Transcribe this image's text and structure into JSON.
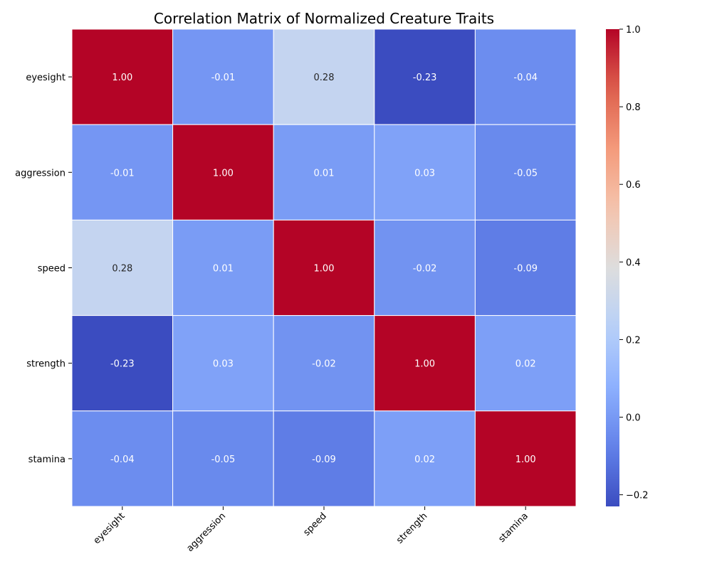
{
  "chart_data": {
    "type": "heatmap",
    "title": "Correlation Matrix of Normalized Creature Traits",
    "xlabel": "",
    "ylabel": "",
    "x_labels": [
      "eyesight",
      "aggression",
      "speed",
      "strength",
      "stamina"
    ],
    "y_labels": [
      "eyesight",
      "aggression",
      "speed",
      "strength",
      "stamina"
    ],
    "matrix": [
      [
        1.0,
        -0.01,
        0.28,
        -0.23,
        -0.04
      ],
      [
        -0.01,
        1.0,
        0.01,
        0.03,
        -0.05
      ],
      [
        0.28,
        0.01,
        1.0,
        -0.02,
        -0.09
      ],
      [
        -0.23,
        0.03,
        -0.02,
        1.0,
        0.02
      ],
      [
        -0.04,
        -0.05,
        -0.09,
        0.02,
        1.0
      ]
    ],
    "cell_labels": [
      [
        "1.00",
        "-0.01",
        "0.28",
        "-0.23",
        "-0.04"
      ],
      [
        "-0.01",
        "1.00",
        "0.01",
        "0.03",
        "-0.05"
      ],
      [
        "0.28",
        "0.01",
        "1.00",
        "-0.02",
        "-0.09"
      ],
      [
        "-0.23",
        "0.03",
        "-0.02",
        "1.00",
        "0.02"
      ],
      [
        "-0.04",
        "-0.05",
        "-0.09",
        "0.02",
        "1.00"
      ]
    ],
    "colormap": "coolwarm",
    "color_range": [
      -0.23,
      1.0
    ],
    "colorbar_ticks": [
      -0.2,
      0.0,
      0.2,
      0.4,
      0.6,
      0.8,
      1.0
    ],
    "colorbar_tick_labels": [
      "−0.2",
      "0.0",
      "0.2",
      "0.4",
      "0.6",
      "0.8",
      "1.0"
    ],
    "cell_border_color": "#ffffff",
    "colors": {
      "low": "#3b4cc0",
      "mid": "#dddddd",
      "high": "#b40426"
    }
  }
}
